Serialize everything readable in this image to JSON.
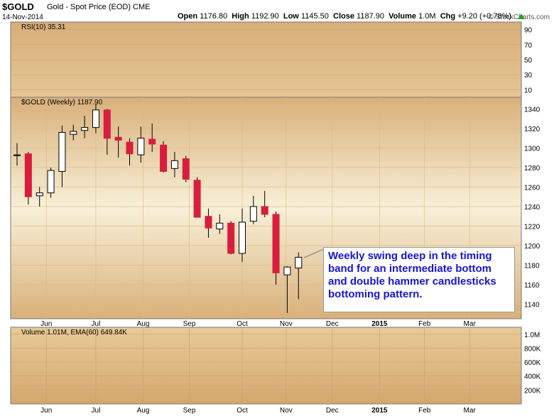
{
  "header": {
    "symbol": "$GOLD",
    "description": "Gold - Spot Price (EOD)  CME",
    "date": "14-Nov-2014",
    "credit": "© StockCharts.com",
    "open_label": "Open",
    "open": "1176.80",
    "high_label": "High",
    "high": "1192.90",
    "low_label": "Low",
    "low": "1145.50",
    "close_label": "Close",
    "close": "1187.90",
    "volume_label": "Volume",
    "volume": "1.0M",
    "chg_label": "Chg",
    "chg": "+9.20 (+0.78%)"
  },
  "annotation": {
    "text": "Weekly swing deep in the timing band for an intermediate bottom and double hammer candlesticks bottoming pattern."
  },
  "colors": {
    "up": "#ffffff",
    "down": "#d81e3c",
    "accent_text": "#1515d9"
  },
  "chart_data": [
    {
      "type": "line",
      "panel": "rsi",
      "legend": "RSI(10) 35.31",
      "ylim": [
        0,
        100
      ],
      "y_ticks": [
        10,
        30,
        50,
        70,
        90
      ]
    },
    {
      "type": "candlestick",
      "panel": "price",
      "legend": "$GOLD (Weekly) 1187.90",
      "ylim": [
        1125,
        1352
      ],
      "y_ticks": [
        1140,
        1160,
        1180,
        1200,
        1220,
        1240,
        1260,
        1280,
        1300,
        1320,
        1340
      ],
      "x_labels": [
        "Jun",
        "Jul",
        "Aug",
        "Sep",
        "Oct",
        "Nov",
        "Dec",
        "2015",
        "Feb",
        "Mar"
      ],
      "x_label_week": [
        2.6,
        7,
        11.2,
        15.3,
        20,
        23.9,
        28,
        32.2,
        36.2,
        40.2
      ],
      "candles": [
        {
          "o": 1293,
          "h": 1305,
          "l": 1282,
          "c": 1293
        },
        {
          "o": 1294,
          "h": 1296,
          "l": 1242,
          "c": 1250
        },
        {
          "o": 1251,
          "h": 1260,
          "l": 1240,
          "c": 1254
        },
        {
          "o": 1254,
          "h": 1280,
          "l": 1249,
          "c": 1277
        },
        {
          "o": 1276,
          "h": 1323,
          "l": 1260,
          "c": 1316
        },
        {
          "o": 1314,
          "h": 1324,
          "l": 1308,
          "c": 1317
        },
        {
          "o": 1318,
          "h": 1333,
          "l": 1310,
          "c": 1321
        },
        {
          "o": 1321,
          "h": 1345,
          "l": 1315,
          "c": 1339
        },
        {
          "o": 1339,
          "h": 1340,
          "l": 1293,
          "c": 1310
        },
        {
          "o": 1311,
          "h": 1322,
          "l": 1290,
          "c": 1308
        },
        {
          "o": 1306,
          "h": 1310,
          "l": 1282,
          "c": 1294
        },
        {
          "o": 1293,
          "h": 1322,
          "l": 1285,
          "c": 1310
        },
        {
          "o": 1309,
          "h": 1325,
          "l": 1296,
          "c": 1304
        },
        {
          "o": 1303,
          "h": 1307,
          "l": 1275,
          "c": 1276
        },
        {
          "o": 1279,
          "h": 1296,
          "l": 1270,
          "c": 1287
        },
        {
          "o": 1289,
          "h": 1292,
          "l": 1265,
          "c": 1268
        },
        {
          "o": 1267,
          "h": 1270,
          "l": 1229,
          "c": 1229
        },
        {
          "o": 1230,
          "h": 1238,
          "l": 1208,
          "c": 1218
        },
        {
          "o": 1217,
          "h": 1232,
          "l": 1212,
          "c": 1223
        },
        {
          "o": 1223,
          "h": 1225,
          "l": 1191,
          "c": 1192
        },
        {
          "o": 1192,
          "h": 1238,
          "l": 1183,
          "c": 1224
        },
        {
          "o": 1225,
          "h": 1251,
          "l": 1222,
          "c": 1240
        },
        {
          "o": 1240,
          "h": 1256,
          "l": 1229,
          "c": 1232
        },
        {
          "o": 1232,
          "h": 1235,
          "l": 1160,
          "c": 1172
        },
        {
          "o": 1170,
          "h": 1179,
          "l": 1131,
          "c": 1178
        },
        {
          "o": 1177,
          "h": 1193,
          "l": 1145,
          "c": 1188
        }
      ]
    },
    {
      "type": "bar",
      "panel": "volume",
      "legend": "Volume 1.01M, EMA(60) 649.84K",
      "y_labels": [
        "1.0M",
        "800K",
        "600K",
        "400K",
        "200K"
      ],
      "y_values": [
        1000000,
        800000,
        600000,
        400000,
        200000
      ],
      "ylim": [
        0,
        1100000
      ]
    }
  ]
}
